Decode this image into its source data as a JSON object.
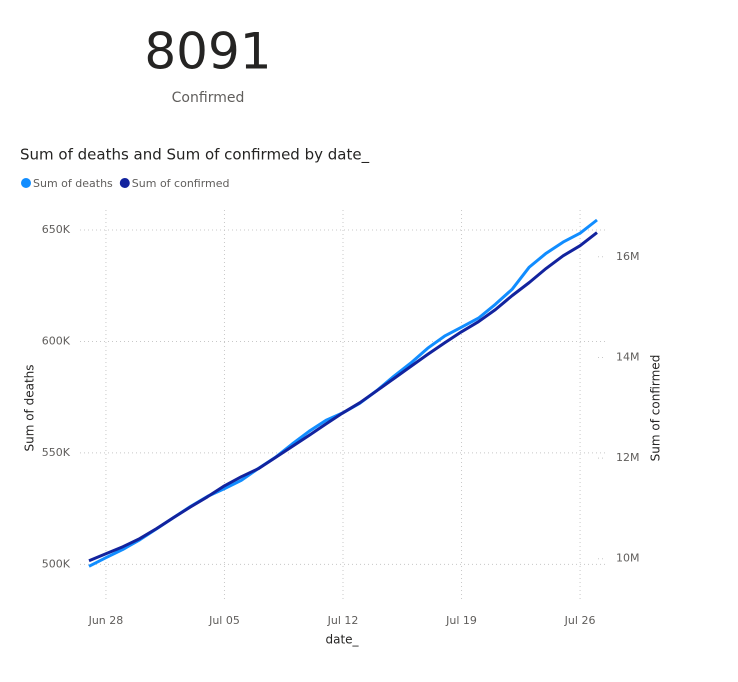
{
  "card": {
    "value": 8091,
    "label": "Confirmed"
  },
  "chart_data": {
    "type": "line",
    "title": "Sum of deaths and Sum of confirmed by date_",
    "x_label": "date_",
    "y_label": "Sum of deaths",
    "y2_label": "Sum of confirmed",
    "x": [
      "Jun 27",
      "Jun 28",
      "Jun 29",
      "Jun 30",
      "Jul 01",
      "Jul 02",
      "Jul 03",
      "Jul 04",
      "Jul 05",
      "Jul 06",
      "Jul 07",
      "Jul 08",
      "Jul 09",
      "Jul 10",
      "Jul 11",
      "Jul 12",
      "Jul 13",
      "Jul 14",
      "Jul 15",
      "Jul 16",
      "Jul 17",
      "Jul 18",
      "Jul 19",
      "Jul 20",
      "Jul 21",
      "Jul 22",
      "Jul 23",
      "Jul 24",
      "Jul 25",
      "Jul 26",
      "Jul 27"
    ],
    "xticks": [
      "Jun 28",
      "Jul 05",
      "Jul 12",
      "Jul 19",
      "Jul 26"
    ],
    "series": [
      {
        "name": "Sum of deaths",
        "color": "#118DFF",
        "axis": "y",
        "values": [
          499100,
          503000,
          506700,
          511000,
          516000,
          521000,
          526000,
          530500,
          534000,
          537700,
          543000,
          548000,
          554000,
          559700,
          564700,
          568000,
          572300,
          578000,
          584400,
          590300,
          597000,
          602400,
          606400,
          610500,
          616700,
          623500,
          633400,
          639600,
          644600,
          648600,
          654500
        ]
      },
      {
        "name": "Sum of confirmed",
        "color": "#12239E",
        "axis": "y2",
        "values": [
          9960000,
          10100000,
          10240000,
          10400000,
          10600000,
          10820000,
          11030000,
          11230000,
          11450000,
          11630000,
          11790000,
          12010000,
          12230000,
          12450000,
          12680000,
          12900000,
          13100000,
          13340000,
          13580000,
          13820000,
          14060000,
          14290000,
          14510000,
          14710000,
          14950000,
          15230000,
          15490000,
          15770000,
          16020000,
          16220000,
          16480000
        ]
      }
    ],
    "ylim": [
      484000,
      659000
    ],
    "yticks": [
      {
        "value": 500000,
        "label": "500K"
      },
      {
        "value": 550000,
        "label": "550K"
      },
      {
        "value": 600000,
        "label": "600K"
      },
      {
        "value": 650000,
        "label": "650K"
      }
    ],
    "y2lim": [
      9180000,
      16930000
    ],
    "y2ticks": [
      {
        "value": 10000000,
        "label": "10M"
      },
      {
        "value": 12000000,
        "label": "12M"
      },
      {
        "value": 14000000,
        "label": "14M"
      },
      {
        "value": 16000000,
        "label": "16M"
      }
    ],
    "grid": true,
    "legend": "top-left"
  }
}
